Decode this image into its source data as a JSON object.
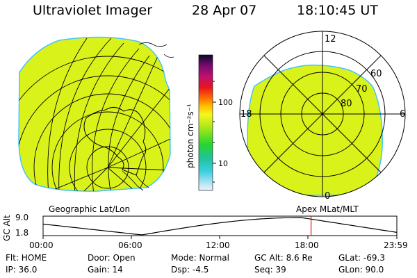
{
  "header": {
    "instrument": "Ultraviolet Imager",
    "date": "28 Apr 07",
    "time": "18:10:45 UT"
  },
  "colors": {
    "emission_fill": "#d9f21a",
    "emission_edge": "#44c4ff",
    "grid": "#000000",
    "timeline_marker": "#e01010"
  },
  "colorbar": {
    "unit_label": "photon cm⁻²s⁻¹",
    "tick_labels": [
      "100",
      "10"
    ],
    "tick_values": [
      100,
      10
    ],
    "scale": "log"
  },
  "geo_panel": {
    "caption": "Geographic Lat/Lon"
  },
  "polar_panel": {
    "caption": "Apex MLat/MLT",
    "mlt_labels": {
      "top": "12",
      "left": "18",
      "right": "6",
      "bottom": "0"
    },
    "lat_labels": [
      "60",
      "70",
      "80"
    ],
    "lat_values": [
      60,
      70,
      80
    ]
  },
  "altitude_chart": {
    "ylabel": "GC Alt",
    "y_ticks": [
      "9.0",
      "1.8"
    ],
    "x_ticks": [
      "00:00",
      "06:00",
      "12:00",
      "18:00",
      "23:59"
    ],
    "current_time_hours": 18.18
  },
  "params": {
    "flt": "Flt: HOME",
    "ip": "IP: 36.0",
    "door": "Door: Open",
    "gain": "Gain: 14",
    "mode": "Mode: Normal",
    "dsp": "Dsp:    -4.5",
    "gc_alt": "GC Alt: 8.6 Re",
    "seq": "Seq: 39",
    "glat": "GLat: -69.3",
    "glon": "GLon:  90.0"
  }
}
